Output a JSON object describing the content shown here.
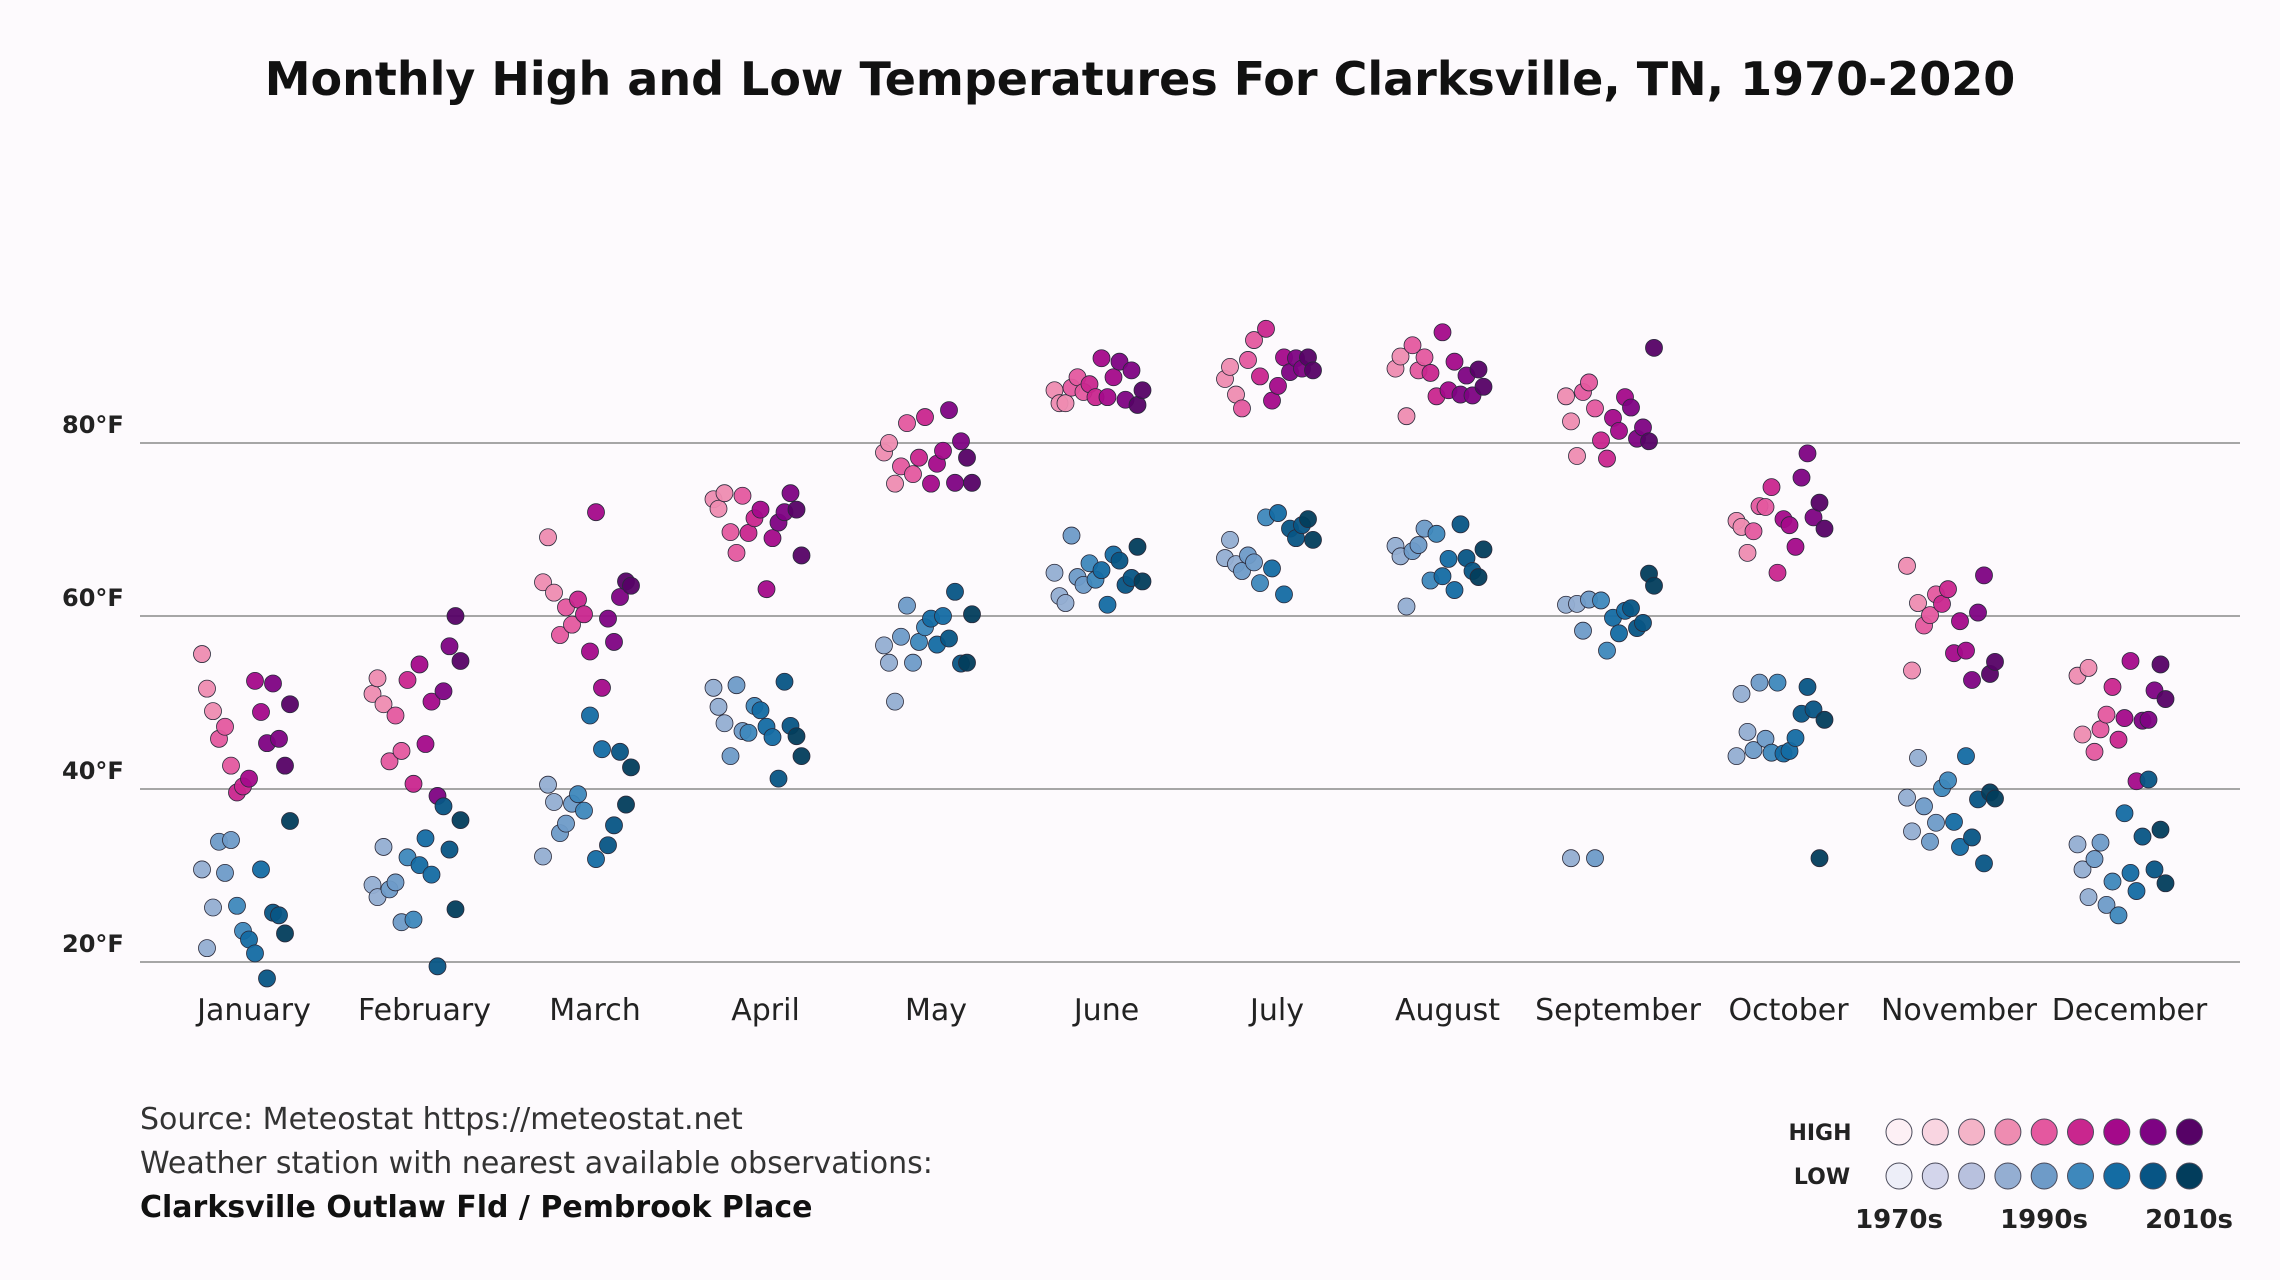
{
  "chart_data": {
    "type": "scatter",
    "title": "Monthly High and Low Temperatures For Clarksville, TN, 1970-2020",
    "xlabel": "",
    "ylabel": "",
    "ylim": [
      20,
      100
    ],
    "yticks": [
      20,
      40,
      60,
      80
    ],
    "ytick_labels": [
      "20°F",
      "40°F",
      "60°F",
      "80°F"
    ],
    "grid": true,
    "categories": [
      "January",
      "February",
      "March",
      "April",
      "May",
      "June",
      "July",
      "August",
      "September",
      "October",
      "November",
      "December"
    ],
    "decade_labels": [
      "1970s",
      "1990s",
      "2010s"
    ],
    "series": [
      {
        "name": "HIGH",
        "values": [
          [
            55.6,
            51.6,
            49.0,
            45.8,
            47.2,
            42.7,
            39.6,
            40.3,
            41.2,
            52.5,
            48.9,
            45.3,
            52.2,
            45.8,
            42.7,
            49.8
          ],
          [
            51.0,
            52.8,
            49.8,
            43.2,
            48.5,
            44.4,
            52.6,
            40.6,
            54.4,
            45.2,
            50.1,
            39.2,
            51.3,
            56.5,
            60.0,
            54.8
          ],
          [
            63.9,
            69.1,
            62.7,
            57.8,
            61.0,
            59.0,
            61.9,
            60.2,
            55.9,
            72.0,
            51.7,
            59.7,
            57.0,
            62.2,
            64.0,
            63.5
          ],
          [
            73.5,
            72.4,
            74.2,
            69.7,
            67.3,
            73.9,
            69.6,
            71.3,
            72.3,
            63.1,
            69.0,
            70.8,
            72.0,
            74.2,
            72.3,
            67.0
          ],
          [
            78.9,
            80.0,
            75.3,
            77.3,
            82.3,
            76.4,
            78.3,
            83.0,
            75.3,
            77.6,
            79.1,
            83.8,
            75.4,
            80.2,
            78.3,
            75.4
          ],
          [
            86.1,
            84.6,
            84.6,
            86.4,
            87.6,
            85.9,
            86.8,
            85.3,
            89.8,
            85.3,
            87.6,
            89.4,
            85.0,
            88.4,
            84.4,
            86.1
          ],
          [
            87.4,
            88.8,
            85.6,
            84.0,
            89.6,
            91.9,
            87.7,
            93.2,
            84.9,
            86.6,
            89.9,
            88.2,
            89.8,
            88.6,
            89.9,
            88.4
          ],
          [
            88.6,
            90.0,
            83.1,
            91.3,
            88.4,
            89.9,
            88.1,
            85.4,
            92.8,
            86.1,
            89.4,
            85.6,
            87.8,
            85.5,
            88.5,
            86.5
          ],
          [
            85.4,
            82.5,
            78.5,
            85.9,
            87.0,
            84.0,
            80.3,
            78.2,
            82.9,
            81.4,
            85.3,
            84.1,
            80.5,
            81.8,
            80.2,
            91.0
          ],
          [
            71.0,
            70.3,
            67.3,
            69.8,
            72.7,
            72.6,
            74.9,
            65.0,
            71.2,
            70.5,
            68.0,
            76.0,
            78.8,
            71.4,
            73.1,
            70.1
          ],
          [
            65.8,
            53.7,
            61.5,
            58.9,
            60.1,
            62.5,
            61.4,
            63.1,
            55.7,
            59.4,
            56.0,
            52.6,
            60.4,
            64.7,
            53.3,
            54.7
          ],
          [
            53.1,
            46.3,
            54.0,
            44.3,
            46.9,
            48.6,
            51.8,
            45.7,
            48.2,
            54.8,
            40.9,
            47.9,
            48.0,
            51.4,
            54.4,
            50.4
          ]
        ]
      },
      {
        "name": "LOW",
        "values": [
          [
            30.7,
            21.6,
            26.3,
            33.9,
            30.3,
            34.1,
            26.5,
            23.6,
            22.6,
            21.0,
            30.7,
            18.1,
            25.7,
            25.4,
            23.3,
            36.3
          ],
          [
            28.9,
            27.5,
            33.3,
            28.4,
            29.2,
            24.6,
            32.1,
            24.9,
            31.2,
            34.3,
            30.1,
            19.5,
            38.0,
            33.0,
            26.1,
            36.4
          ],
          [
            32.2,
            40.5,
            38.5,
            34.9,
            36.0,
            38.3,
            39.4,
            37.5,
            48.5,
            31.9,
            44.6,
            33.5,
            35.8,
            44.3,
            38.2,
            42.5
          ],
          [
            51.7,
            49.5,
            47.6,
            43.8,
            52.0,
            46.7,
            46.5,
            49.6,
            49.1,
            47.2,
            46.0,
            41.2,
            52.4,
            47.3,
            46.1,
            43.8
          ],
          [
            56.6,
            54.6,
            50.1,
            57.6,
            61.2,
            54.6,
            57.0,
            58.7,
            59.7,
            56.7,
            60.0,
            57.4,
            62.8,
            54.5,
            54.6,
            60.2
          ],
          [
            65.0,
            62.3,
            61.5,
            69.3,
            64.5,
            63.6,
            66.1,
            64.2,
            65.3,
            61.3,
            67.1,
            66.4,
            63.6,
            64.4,
            68.0,
            64.0
          ],
          [
            66.7,
            68.8,
            66.0,
            65.2,
            67.0,
            66.2,
            63.8,
            71.4,
            65.5,
            71.9,
            62.5,
            70.1,
            69.0,
            70.5,
            71.2,
            68.8
          ],
          [
            68.1,
            66.9,
            61.1,
            67.5,
            68.2,
            70.1,
            64.1,
            69.5,
            64.6,
            66.6,
            63.0,
            70.6,
            66.7,
            65.2,
            64.5,
            67.7
          ],
          [
            61.3,
            32.0,
            61.4,
            58.3,
            61.9,
            32.0,
            61.8,
            56.0,
            59.8,
            58.0,
            60.6,
            60.9,
            58.6,
            59.2,
            64.9,
            63.5
          ],
          [
            43.8,
            51.0,
            46.6,
            44.5,
            52.3,
            45.8,
            44.2,
            52.3,
            44.1,
            44.4,
            45.9,
            48.7,
            51.8,
            49.2,
            32.0,
            48.0
          ],
          [
            39.0,
            35.1,
            43.6,
            38.0,
            33.9,
            36.1,
            40.1,
            41.0,
            36.2,
            33.3,
            43.8,
            34.4,
            38.8,
            31.4,
            39.6,
            38.9
          ],
          [
            33.6,
            30.7,
            27.5,
            31.9,
            33.8,
            26.6,
            29.3,
            25.4,
            37.2,
            30.3,
            28.2,
            34.5,
            41.1,
            30.7,
            35.3,
            29.1
          ]
        ]
      }
    ]
  },
  "legend": {
    "high_label": "HIGH",
    "low_label": "LOW",
    "high_colors": [
      "#fdf0f5",
      "#f9d5e1",
      "#f4b4c8",
      "#ee8cb1",
      "#e4589f",
      "#c9268e",
      "#a4098a",
      "#7e0383",
      "#560266"
    ],
    "low_colors": [
      "#edeef8",
      "#d3d5eb",
      "#b8c1de",
      "#94aed2",
      "#6e9bc8",
      "#3e88bc",
      "#146ca3",
      "#075585",
      "#023d5c"
    ]
  },
  "footer": {
    "source": "Source: Meteostat https://meteostat.net",
    "station_note": "Weather station with nearest available observations:",
    "station_name": "Clarksville Outlaw Fld / Pembrook Place"
  }
}
